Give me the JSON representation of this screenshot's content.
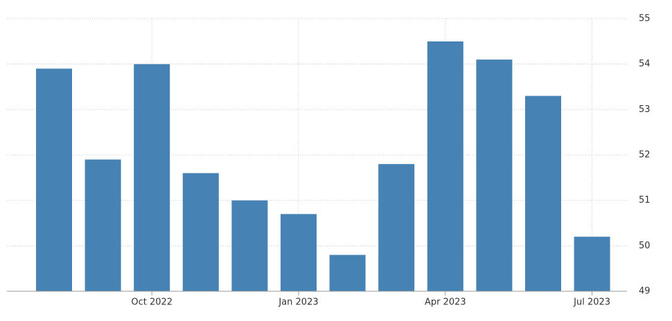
{
  "chart_data": {
    "type": "bar",
    "categories": [
      null,
      null,
      "Oct 2022",
      null,
      null,
      "Jan 2023",
      null,
      null,
      "Apr 2023",
      null,
      null,
      "Jul 2023"
    ],
    "values": [
      53.9,
      51.9,
      54.0,
      51.6,
      51.0,
      50.7,
      49.8,
      51.8,
      54.5,
      54.1,
      53.3,
      50.2
    ],
    "color": "#4682b4",
    "ylim": [
      49,
      55
    ],
    "yticks": [
      49,
      50,
      51,
      52,
      53,
      54,
      55
    ],
    "grid": true
  }
}
